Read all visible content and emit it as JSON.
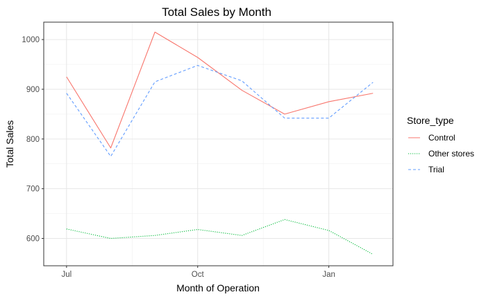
{
  "chart_data": {
    "type": "line",
    "title": "Total Sales by Month",
    "xlabel": "Month of Operation",
    "ylabel": "Total Sales",
    "x": [
      "2018-07",
      "2018-08",
      "2018-09",
      "2018-10",
      "2018-11",
      "2018-12",
      "2019-01",
      "2019-02"
    ],
    "x_ticks": [
      {
        "value": "2018-07",
        "label": "Jul"
      },
      {
        "value": "2018-10",
        "label": "Oct"
      },
      {
        "value": "2019-01",
        "label": "Jan"
      }
    ],
    "xlim": [
      "2018-06-15",
      "2019-02-15"
    ],
    "ylim": [
      545,
      1035
    ],
    "y_ticks": [
      600,
      700,
      800,
      900,
      1000
    ],
    "grid": true,
    "legend": {
      "title": "Store_type",
      "position": "right"
    },
    "series": [
      {
        "name": "Control",
        "color": "#F8766D",
        "dash": "solid",
        "values": [
          925,
          782,
          1015,
          964,
          898,
          850,
          875,
          892
        ]
      },
      {
        "name": "Other stores",
        "color": "#00BA38",
        "dash": "dotted",
        "values": [
          619,
          600,
          606,
          618,
          606,
          638,
          616,
          568
        ]
      },
      {
        "name": "Trial",
        "color": "#619CFF",
        "dash": "dashed",
        "values": [
          892,
          765,
          915,
          948,
          917,
          842,
          842,
          914
        ]
      }
    ]
  }
}
